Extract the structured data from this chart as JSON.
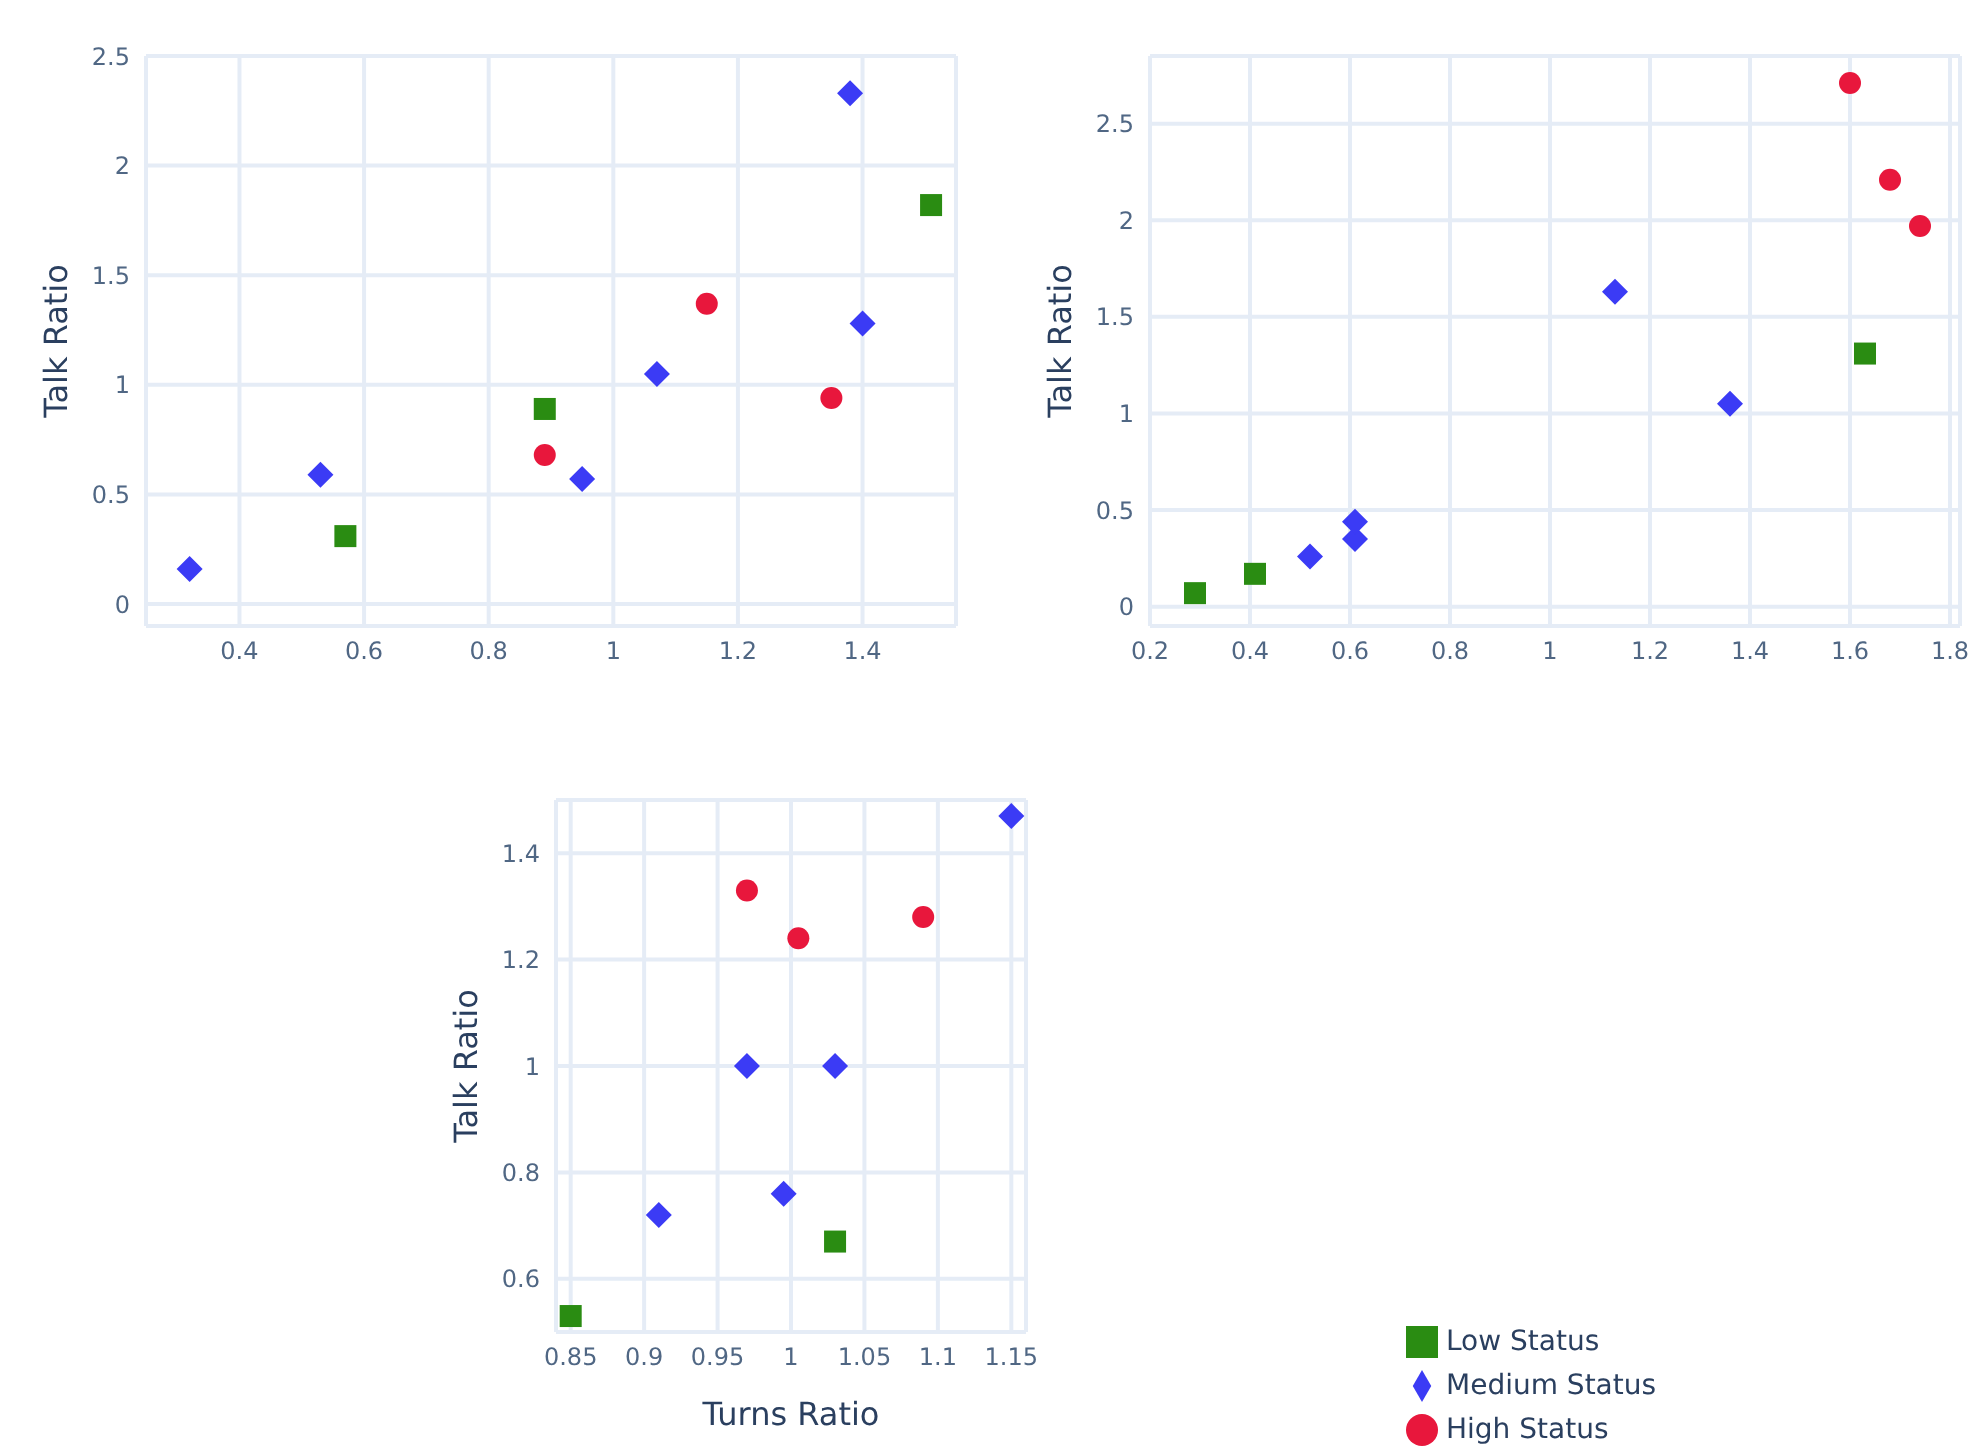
{
  "chart_data": [
    {
      "type": "scatter",
      "ylabel": "Talk Ratio",
      "xlim": [
        0.25,
        1.55
      ],
      "ylim": [
        -0.1,
        2.5
      ],
      "xticks": [
        0.4,
        0.6,
        0.8,
        1,
        1.2,
        1.4
      ],
      "yticks": [
        0,
        0.5,
        1,
        1.5,
        2,
        2.5
      ],
      "grid": true,
      "legend": false,
      "series": [
        {
          "color": "#2a8c12",
          "marker": "square",
          "x": [
            0.57,
            0.89,
            1.51
          ],
          "values": [
            0.31,
            0.89,
            1.82
          ]
        },
        {
          "color": "#3b3bf5",
          "marker": "diamond",
          "x": [
            0.32,
            0.53,
            0.95,
            1.07,
            1.38,
            1.4
          ],
          "values": [
            0.16,
            0.59,
            0.57,
            1.05,
            2.33,
            1.28
          ]
        },
        {
          "color": "#e8173c",
          "marker": "circle",
          "x": [
            0.89,
            1.15,
            1.35
          ],
          "values": [
            0.68,
            1.37,
            0.94
          ]
        }
      ]
    },
    {
      "type": "scatter",
      "ylabel": "Talk Ratio",
      "xlim": [
        0.2,
        1.82
      ],
      "ylim": [
        -0.1,
        2.85
      ],
      "xticks": [
        0.2,
        0.4,
        0.6,
        0.8,
        1,
        1.2,
        1.4,
        1.6,
        1.8
      ],
      "yticks": [
        0,
        0.5,
        1,
        1.5,
        2,
        2.5
      ],
      "grid": true,
      "legend": false,
      "series": [
        {
          "color": "#2a8c12",
          "marker": "square",
          "x": [
            0.29,
            0.41,
            1.63
          ],
          "values": [
            0.07,
            0.17,
            1.31
          ]
        },
        {
          "color": "#3b3bf5",
          "marker": "diamond",
          "x": [
            0.52,
            0.61,
            0.61,
            1.13,
            1.36
          ],
          "values": [
            0.26,
            0.35,
            0.44,
            1.63,
            1.05
          ]
        },
        {
          "color": "#e8173c",
          "marker": "circle",
          "x": [
            1.6,
            1.68,
            1.74
          ],
          "values": [
            2.71,
            2.21,
            1.97
          ]
        }
      ]
    },
    {
      "type": "scatter",
      "xlabel": "Turns Ratio",
      "ylabel": "Talk Ratio",
      "xlim": [
        0.84,
        1.16
      ],
      "ylim": [
        0.5,
        1.5
      ],
      "xticks": [
        0.85,
        0.9,
        0.95,
        1,
        1.05,
        1.1,
        1.15
      ],
      "yticks": [
        0.6,
        0.8,
        1,
        1.2,
        1.4
      ],
      "grid": true,
      "legend": "bottom right",
      "series": [
        {
          "name": "Low Status",
          "color": "#2a8c12",
          "marker": "square",
          "x": [
            0.85,
            1.03
          ],
          "values": [
            0.53,
            0.67
          ]
        },
        {
          "name": "Medium Status",
          "color": "#3b3bf5",
          "marker": "diamond",
          "x": [
            0.91,
            0.97,
            0.995,
            1.03,
            1.15
          ],
          "values": [
            0.72,
            1.0,
            0.76,
            1.0,
            1.47
          ]
        },
        {
          "name": "High Status",
          "color": "#e8173c",
          "marker": "circle",
          "x": [
            0.97,
            1.005,
            1.09
          ],
          "values": [
            1.33,
            1.24,
            1.28
          ]
        }
      ]
    }
  ]
}
